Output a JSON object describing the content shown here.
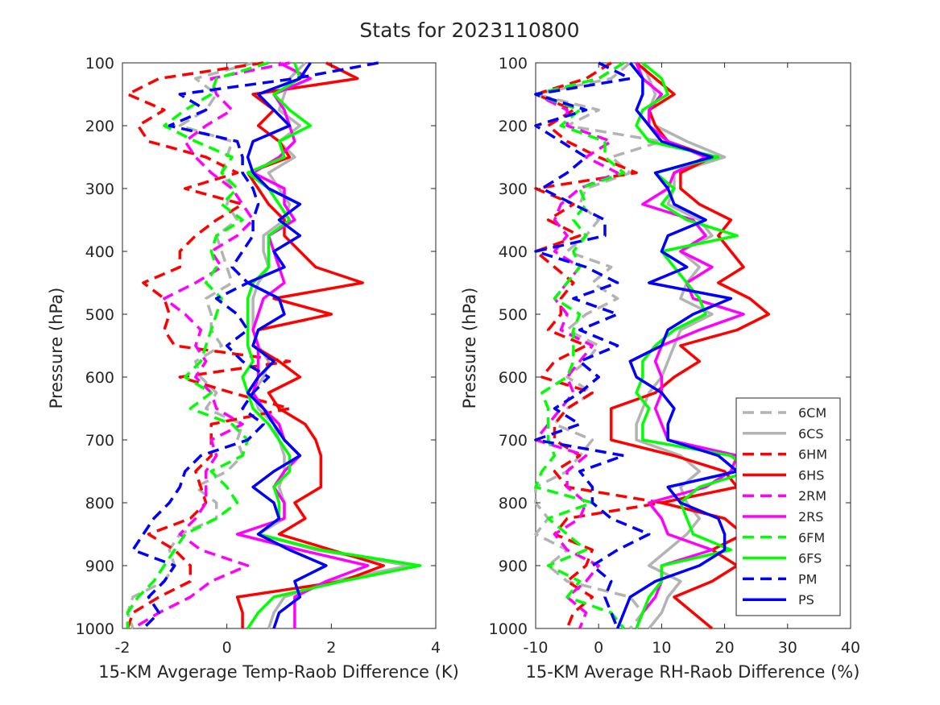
{
  "figure": {
    "title": "Stats for 2023110800"
  },
  "legend": {
    "placement": "bottom-right of right panel",
    "entries": [
      {
        "label": "6CM",
        "color": "#b3b3b3",
        "dash": true
      },
      {
        "label": "6CS",
        "color": "#b3b3b3",
        "dash": false
      },
      {
        "label": "6HM",
        "color": "#ff0000",
        "dash": true
      },
      {
        "label": "6HS",
        "color": "#ff0000",
        "dash": false
      },
      {
        "label": "2RM",
        "color": "#ff00ff",
        "dash": true
      },
      {
        "label": "2RS",
        "color": "#ff00ff",
        "dash": false
      },
      {
        "label": "6FM",
        "color": "#00ff00",
        "dash": true
      },
      {
        "label": "6FS",
        "color": "#00ff00",
        "dash": false
      },
      {
        "label": "PM",
        "color": "#0000ff",
        "dash": true
      },
      {
        "label": "PS",
        "color": "#0000ff",
        "dash": false
      }
    ]
  },
  "chart_data": [
    {
      "type": "line",
      "orientation": "vertical-profile",
      "title": "",
      "xlabel": "15-KM Avgerage Temp-Raob Difference (K)",
      "ylabel": "Pressure (hPa)",
      "xlim": [
        -2,
        4
      ],
      "ylim": [
        1000,
        100
      ],
      "y_reversed": true,
      "xticks": [
        "-2",
        "0",
        "2",
        "4"
      ],
      "yticks": [
        "100",
        "200",
        "300",
        "400",
        "500",
        "600",
        "700",
        "800",
        "900",
        "1000"
      ],
      "grid": false,
      "pressure_levels": [
        100,
        125,
        150,
        175,
        200,
        225,
        250,
        275,
        300,
        325,
        350,
        375,
        400,
        425,
        450,
        475,
        500,
        525,
        550,
        575,
        600,
        625,
        650,
        675,
        700,
        725,
        750,
        775,
        800,
        825,
        850,
        875,
        900,
        925,
        950,
        975,
        1000
      ],
      "series": [
        {
          "name": "6CM",
          "values": [
            0.5,
            -0.6,
            -0.2,
            -0.4,
            -0.9,
            0.1,
            0.0,
            -0.1,
            0.1,
            0.0,
            0.2,
            -0.2,
            -0.1,
            0.0,
            0.1,
            -0.4,
            -0.3,
            -0.3,
            -0.1,
            -0.6,
            -0.5,
            -0.2,
            -0.4,
            0.3,
            0.2,
            0.3,
            0.0,
            -0.6,
            -0.2,
            -0.2,
            -0.9,
            -1.1,
            -1.0,
            -1.2,
            -1.8,
            -1.9,
            -1.8
          ]
        },
        {
          "name": "6CS",
          "values": [
            1.5,
            1.2,
            1.1,
            1.0,
            1.4,
            1.0,
            1.3,
            0.8,
            1.0,
            1.2,
            1.1,
            0.7,
            0.7,
            0.8,
            0.6,
            0.5,
            0.5,
            0.5,
            0.6,
            0.8,
            0.7,
            0.5,
            0.6,
            0.9,
            1.0,
            1.1,
            1.1,
            1.0,
            1.1,
            1.1,
            0.6,
            1.7,
            3.5,
            2.0,
            1.1,
            0.9,
            0.8
          ]
        },
        {
          "name": "6HM",
          "values": [
            0.7,
            -1.3,
            -1.9,
            -1.2,
            -1.7,
            -1.5,
            -0.4,
            0.2,
            -0.8,
            0.3,
            -0.2,
            -0.6,
            -0.9,
            -0.9,
            -1.6,
            -1.2,
            -1.1,
            -1.2,
            -1.0,
            1.2,
            -0.9,
            0.1,
            1.2,
            -0.3,
            -0.3,
            -0.3,
            -0.6,
            -0.5,
            -0.4,
            -0.7,
            -1.5,
            -1.0,
            -0.7,
            -0.7,
            -1.3,
            -1.8,
            -1.9
          ]
        },
        {
          "name": "6HS",
          "values": [
            1.9,
            2.5,
            0.5,
            0.9,
            0.6,
            1.0,
            1.2,
            0.4,
            0.6,
            0.8,
            1.1,
            1.1,
            1.4,
            1.7,
            2.6,
            0.9,
            2.0,
            0.6,
            0.5,
            1.0,
            1.4,
            0.8,
            1.0,
            1.5,
            1.7,
            1.8,
            1.8,
            1.8,
            1.3,
            1.5,
            1.0,
            2.0,
            3.0,
            2.2,
            0.2,
            0.3,
            0.3
          ]
        },
        {
          "name": "2RM",
          "values": [
            1.2,
            -0.3,
            -0.2,
            0.1,
            -0.4,
            -0.8,
            -0.6,
            -0.3,
            0.1,
            0.3,
            0.5,
            0.2,
            -0.3,
            -0.1,
            -0.6,
            -1.2,
            -0.8,
            -0.5,
            -0.6,
            -0.4,
            -0.6,
            -0.3,
            -0.2,
            0.3,
            -0.3,
            -0.2,
            -0.4,
            -0.4,
            -0.4,
            -0.6,
            -0.9,
            -0.5,
            0.4,
            -0.3,
            -0.7,
            -1.3,
            -1.8
          ]
        },
        {
          "name": "2RS",
          "values": [
            1.0,
            1.6,
            0.9,
            1.1,
            1.2,
            1.3,
            1.0,
            0.5,
            1.1,
            1.1,
            1.3,
            0.8,
            0.9,
            1.0,
            1.1,
            0.7,
            0.6,
            0.5,
            0.6,
            0.6,
            0.6,
            0.5,
            0.7,
            1.0,
            1.1,
            1.4,
            1.1,
            0.9,
            1.1,
            1.1,
            0.2,
            1.4,
            2.7,
            1.9,
            1.3,
            1.3,
            1.3
          ]
        },
        {
          "name": "6FM",
          "values": [
            0.8,
            -0.2,
            -0.3,
            -0.8,
            -1.2,
            -0.6,
            0.1,
            -0.1,
            0.2,
            -0.1,
            0.3,
            -0.2,
            -0.3,
            -0.2,
            -0.4,
            -0.1,
            -0.2,
            -0.3,
            -0.4,
            -0.5,
            -0.8,
            -0.3,
            -0.7,
            0.1,
            0.4,
            0.3,
            -0.3,
            0.0,
            0.2,
            -0.2,
            -0.8,
            -1.0,
            -1.2,
            -1.4,
            -1.7,
            -1.9,
            -1.9
          ]
        },
        {
          "name": "6FS",
          "values": [
            1.3,
            1.4,
            0.9,
            1.2,
            1.6,
            1.0,
            1.1,
            0.4,
            0.8,
            1.0,
            1.2,
            0.8,
            0.8,
            0.8,
            0.5,
            0.4,
            0.4,
            0.4,
            0.4,
            0.5,
            0.3,
            0.4,
            0.5,
            0.8,
            1.0,
            1.2,
            1.2,
            0.9,
            1.0,
            1.0,
            0.6,
            1.8,
            3.7,
            2.2,
            0.9,
            0.6,
            0.4
          ]
        },
        {
          "name": "PM",
          "values": [
            2.9,
            1.3,
            -0.9,
            -0.4,
            -1.1,
            0.2,
            0.3,
            0.3,
            0.5,
            0.6,
            0.5,
            0.5,
            0.3,
            0.1,
            0.4,
            -0.2,
            0.2,
            0.4,
            0.0,
            0.3,
            0.8,
            0.5,
            0.3,
            0.7,
            0.4,
            -0.5,
            -0.8,
            -0.9,
            -1.1,
            -1.4,
            -1.6,
            -1.8,
            -1.0,
            -1.2,
            -1.5,
            -1.3,
            -1.6
          ]
        },
        {
          "name": "PS",
          "values": [
            1.6,
            1.4,
            0.6,
            0.9,
            1.2,
            0.5,
            0.4,
            0.5,
            0.8,
            1.4,
            1.0,
            1.4,
            0.9,
            1.1,
            0.4,
            1.0,
            1.1,
            0.6,
            0.5,
            0.9,
            0.6,
            0.4,
            0.7,
            0.9,
            1.1,
            1.4,
            0.9,
            0.5,
            0.9,
            1.0,
            0.6,
            1.2,
            1.9,
            1.3,
            1.4,
            1.0,
            0.9
          ]
        }
      ]
    },
    {
      "type": "line",
      "orientation": "vertical-profile",
      "title": "",
      "xlabel": "15-KM Average RH-Raob Difference (%)",
      "ylabel": "Pressure (hPa)",
      "xlim": [
        -10,
        40
      ],
      "ylim": [
        1000,
        100
      ],
      "y_reversed": true,
      "xticks": [
        "-10",
        "0",
        "10",
        "20",
        "30",
        "40"
      ],
      "yticks": [
        "100",
        "200",
        "300",
        "400",
        "500",
        "600",
        "700",
        "800",
        "900",
        "1000"
      ],
      "grid": false,
      "pressure_levels": [
        100,
        125,
        150,
        175,
        200,
        225,
        250,
        275,
        300,
        325,
        350,
        375,
        400,
        425,
        450,
        475,
        500,
        525,
        550,
        575,
        600,
        625,
        650,
        675,
        700,
        725,
        750,
        775,
        800,
        825,
        850,
        875,
        900,
        925,
        950,
        975,
        1000
      ],
      "series": [
        {
          "name": "6CM",
          "values": [
            5,
            2,
            -10,
            0,
            -5,
            10,
            2,
            5,
            -2,
            -3,
            0,
            -2,
            -5,
            2,
            -1,
            3,
            -2,
            -5,
            0,
            -2,
            -5,
            -1,
            -5,
            -7,
            -1,
            -3,
            -5,
            -10,
            -10,
            -8,
            -10,
            -5,
            -8,
            -5,
            5,
            7,
            5
          ]
        },
        {
          "name": "6CS",
          "values": [
            7,
            8,
            9,
            8,
            9,
            14,
            20,
            12,
            12,
            11,
            16,
            18,
            13,
            16,
            14,
            13,
            18,
            13,
            12,
            11,
            10,
            8,
            7,
            6,
            6,
            13,
            16,
            13,
            14,
            16,
            14,
            11,
            8,
            13,
            11,
            10,
            8
          ]
        },
        {
          "name": "6HM",
          "values": [
            2,
            -2,
            -10,
            -4,
            -8,
            -5,
            0,
            6,
            -10,
            -4,
            -8,
            -3,
            -10,
            -7,
            -4,
            -6,
            -6,
            -8,
            -2,
            -7,
            -9,
            -1,
            -5,
            -7,
            -7,
            -3,
            -7,
            -5,
            10,
            -5,
            -7,
            -1,
            -2,
            -5,
            -1,
            -4,
            -5
          ]
        },
        {
          "name": "6HS",
          "values": [
            6,
            9,
            12,
            8,
            9,
            11,
            18,
            13,
            13,
            16,
            21,
            19,
            21,
            23,
            19,
            24,
            27,
            22,
            13,
            16,
            12,
            9,
            2,
            2,
            2,
            12,
            20,
            22,
            10,
            20,
            23,
            18,
            22,
            18,
            12,
            15,
            18
          ]
        },
        {
          "name": "2RM",
          "values": [
            4,
            0,
            -10,
            -5,
            -5,
            2,
            -2,
            3,
            -3,
            -6,
            -7,
            -5,
            -7,
            -3,
            -5,
            -7,
            -5,
            -6,
            -1,
            -3,
            -5,
            -4,
            -6,
            -8,
            -10,
            -2,
            -5,
            -5,
            -2,
            -3,
            -7,
            -5,
            0,
            -2,
            -5,
            -2,
            -3
          ]
        },
        {
          "name": "2RS",
          "values": [
            6,
            7,
            10,
            8,
            8,
            11,
            17,
            12,
            11,
            7,
            15,
            17,
            13,
            18,
            14,
            15,
            23,
            16,
            10,
            9,
            10,
            10,
            9,
            10,
            11,
            22,
            21,
            17,
            8,
            10,
            11,
            18,
            10,
            10,
            9,
            7,
            6
          ]
        },
        {
          "name": "6FM",
          "values": [
            4,
            0,
            -10,
            -3,
            -6,
            1,
            1,
            4,
            -3,
            -2,
            -4,
            -2,
            -4,
            -3,
            -5,
            -7,
            -3,
            -4,
            -4,
            -4,
            -5,
            -9,
            -8,
            -8,
            -8,
            -7,
            -9,
            -10,
            -1,
            -8,
            -5,
            -2,
            -8,
            -3,
            -5,
            2,
            4
          ]
        },
        {
          "name": "6FS",
          "values": [
            7,
            10,
            11,
            7,
            6,
            8,
            19,
            9,
            12,
            10,
            14,
            22,
            10,
            12,
            14,
            16,
            17,
            12,
            9,
            7,
            7,
            6,
            8,
            7,
            7,
            21,
            24,
            16,
            13,
            14,
            15,
            21,
            10,
            10,
            8,
            7,
            6
          ]
        },
        {
          "name": "PM",
          "values": [
            0,
            5,
            -10,
            -2,
            -10,
            -6,
            -2,
            -5,
            -9,
            -4,
            1,
            1,
            -10,
            -2,
            3,
            -4,
            3,
            -3,
            3,
            -3,
            0,
            -3,
            -7,
            -3,
            -10,
            4,
            -3,
            -1,
            -1,
            2,
            8,
            3,
            -1,
            2,
            1,
            2,
            3
          ]
        },
        {
          "name": "PS",
          "values": [
            5,
            7,
            7,
            6,
            8,
            10,
            18,
            9,
            11,
            12,
            17,
            11,
            10,
            14,
            8,
            21,
            15,
            11,
            10,
            5,
            6,
            10,
            12,
            11,
            11,
            19,
            22,
            11,
            13,
            19,
            20,
            20,
            16,
            9,
            5,
            4,
            3
          ]
        }
      ]
    }
  ]
}
